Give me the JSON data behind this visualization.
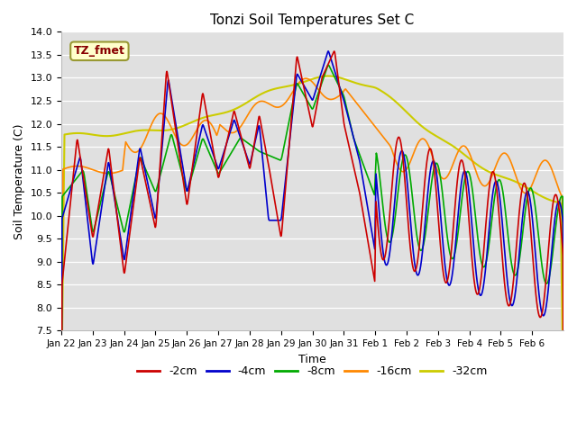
{
  "title": "Tonzi Soil Temperatures Set C",
  "xlabel": "Time",
  "ylabel": "Soil Temperature (C)",
  "ylim": [
    7.5,
    14.0
  ],
  "line_colors": {
    "-2cm": "#cc0000",
    "-4cm": "#0000cc",
    "-8cm": "#00aa00",
    "-16cm": "#ff8800",
    "-32cm": "#cccc00"
  },
  "legend_label": "TZ_fmet",
  "legend_bg": "#ffffcc",
  "legend_border": "#999933",
  "legend_text_color": "#880000",
  "xtick_labels": [
    "Jan 22",
    "Jan 23",
    "Jan 24",
    "Jan 25",
    "Jan 26",
    "Jan 27",
    "Jan 28",
    "Jan 29",
    "Jan 30",
    "Jan 31",
    "Feb 1",
    "Feb 2",
    "Feb 3",
    "Feb 4",
    "Feb 5",
    "Feb 6"
  ]
}
